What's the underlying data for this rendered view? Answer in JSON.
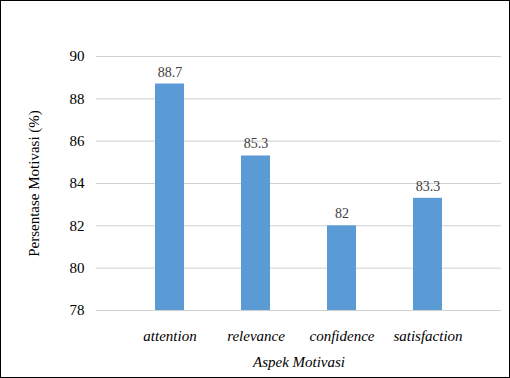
{
  "chart_data": {
    "type": "bar",
    "categories": [
      "attention",
      "relevance",
      "confidence",
      "satisfaction"
    ],
    "values": [
      88.7,
      85.3,
      82,
      83.3
    ],
    "color": "#5b9bd5",
    "xlabel": "Aspek Motivasi",
    "ylabel": "Persentase Motivasi (%)",
    "ylim": [
      78,
      90
    ],
    "yticks": [
      78,
      80,
      82,
      84,
      86,
      88,
      90
    ],
    "grid": true,
    "data_labels": true
  }
}
